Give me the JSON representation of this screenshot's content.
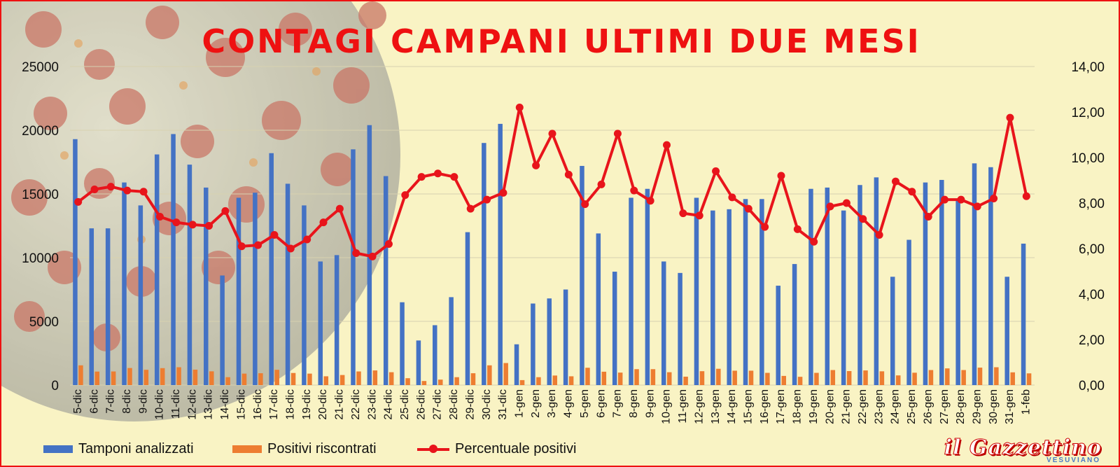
{
  "chart_data": {
    "type": "bar+line",
    "title": "CONTAGI CAMPANI ULTIMI DUE MESI",
    "categories": [
      "5-dic",
      "6-dic",
      "7-dic",
      "8-dic",
      "9-dic",
      "10-dic",
      "11-dic",
      "12-dic",
      "13-dic",
      "14-dic",
      "15-dic",
      "16-dic",
      "17-dic",
      "18-dic",
      "19-dic",
      "20-dic",
      "21-dic",
      "22-dic",
      "23-dic",
      "24-dic",
      "25-dic",
      "26-dic",
      "27-dic",
      "28-dic",
      "29-dic",
      "30-dic",
      "31-dic",
      "1-gen",
      "2-gen",
      "3-gen",
      "4-gen",
      "5-gen",
      "6-gen",
      "7-gen",
      "8-gen",
      "9-gen",
      "10-gen",
      "11-gen",
      "12-gen",
      "13-gen",
      "14-gen",
      "15-gen",
      "16-gen",
      "17-gen",
      "18-gen",
      "19-gen",
      "20-gen",
      "21-gen",
      "22-gen",
      "23-gen",
      "24-gen",
      "25-gen",
      "26-gen",
      "27-gen",
      "28-gen",
      "29-gen",
      "30-gen",
      "31-gen",
      "1-feb"
    ],
    "series": [
      {
        "name": "Tamponi analizzati",
        "axis": "left",
        "kind": "bar",
        "color": "#4472c4",
        "values": [
          19300,
          12300,
          12300,
          15900,
          14100,
          18100,
          19700,
          17300,
          15500,
          8600,
          14700,
          15100,
          18200,
          15800,
          14100,
          9700,
          10200,
          18500,
          20400,
          16400,
          6500,
          3500,
          4700,
          6900,
          12000,
          19000,
          20500,
          3200,
          6400,
          6800,
          7500,
          17200,
          11900,
          8900,
          14700,
          15400,
          9700,
          8800,
          14700,
          13700,
          13800,
          14600,
          14600,
          7800,
          9500,
          15400,
          15500,
          13700,
          15700,
          16300,
          8500,
          11400,
          15900,
          16100,
          14500,
          17400,
          17100,
          8500,
          11100
        ]
      },
      {
        "name": "Positivi riscontrati",
        "axis": "left",
        "kind": "bar",
        "color": "#ed7d31",
        "values": [
          1550,
          1060,
          1070,
          1340,
          1200,
          1330,
          1400,
          1210,
          1080,
          620,
          900,
          930,
          1200,
          950,
          900,
          690,
          790,
          1070,
          1150,
          1010,
          540,
          320,
          430,
          620,
          930,
          1550,
          1730,
          390,
          620,
          750,
          690,
          1360,
          1050,
          980,
          1250,
          1250,
          1010,
          660,
          1090,
          1280,
          1130,
          1130,
          960,
          720,
          650,
          960,
          1180,
          1100,
          1150,
          1080,
          760,
          970,
          1180,
          1310,
          1180,
          1370,
          1400,
          1000,
          920
        ]
      },
      {
        "name": "Percentuale positivi",
        "axis": "right",
        "kind": "line",
        "color": "#e8141b",
        "values": [
          8.05,
          8.6,
          8.72,
          8.55,
          8.5,
          7.4,
          7.15,
          7.05,
          7.0,
          7.65,
          6.1,
          6.15,
          6.6,
          6.0,
          6.4,
          7.15,
          7.75,
          5.8,
          5.65,
          6.2,
          8.35,
          9.15,
          9.3,
          9.15,
          7.75,
          8.15,
          8.45,
          12.2,
          9.65,
          11.05,
          9.25,
          7.95,
          8.82,
          11.05,
          8.55,
          8.1,
          10.55,
          7.55,
          7.45,
          9.4,
          8.25,
          7.75,
          6.95,
          9.2,
          6.85,
          6.3,
          7.85,
          8.0,
          7.3,
          6.6,
          8.95,
          8.5,
          7.4,
          8.15,
          8.15,
          7.85,
          8.2,
          11.75,
          8.3
        ]
      }
    ],
    "y_left": {
      "min": 0,
      "max": 25000,
      "ticks": [
        "0",
        "5000",
        "10000",
        "15000",
        "20000",
        "25000"
      ]
    },
    "y_right": {
      "min": 0,
      "max": 14,
      "ticks": [
        "0,00",
        "2,00",
        "4,00",
        "6,00",
        "8,00",
        "10,00",
        "12,00",
        "14,00"
      ]
    },
    "grid": true,
    "legend": "bottom"
  },
  "legend": {
    "tamponi": "Tamponi analizzati",
    "positivi": "Positivi riscontrati",
    "percentuale": "Percentuale positivi"
  },
  "logo": {
    "name": "il Gazzettino",
    "subtitle": "VESUVIANO"
  }
}
